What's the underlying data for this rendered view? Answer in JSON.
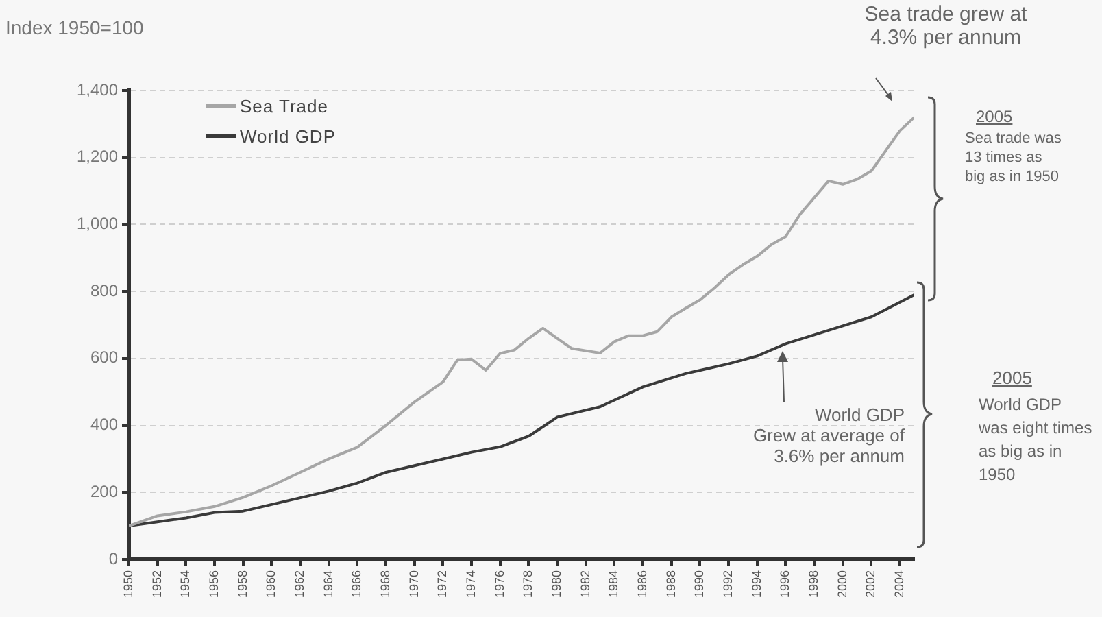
{
  "chart_data": {
    "type": "line",
    "ylabel": "Index 1950=100",
    "xlim": [
      1950,
      2005
    ],
    "xticks": [
      1950,
      1952,
      1954,
      1956,
      1958,
      1960,
      1962,
      1964,
      1966,
      1968,
      1970,
      1972,
      1974,
      1976,
      1978,
      1980,
      1982,
      1984,
      1986,
      1988,
      1990,
      1992,
      1994,
      1996,
      1998,
      2000,
      2002,
      2004
    ],
    "ylim": [
      0,
      1400
    ],
    "yticks": [
      0,
      200,
      400,
      600,
      800,
      {
        "value": 1000,
        "label": "1,000"
      },
      {
        "value": 1200,
        "label": "1,200"
      },
      {
        "value": 1400,
        "label": "1,400"
      }
    ],
    "grid": "y",
    "legend": "top left",
    "line_style": "solid",
    "marker": "none",
    "series": [
      {
        "name": "Sea Trade",
        "color": "#a6a6a6",
        "x": [
          1950,
          1952,
          1954,
          1956,
          1958,
          1960,
          1962,
          1964,
          1966,
          1968,
          1970,
          1972,
          1973,
          1974,
          1975,
          1976,
          1977,
          1978,
          1979,
          1980,
          1981,
          1982,
          1983,
          1984,
          1985,
          1986,
          1987,
          1988,
          1989,
          1990,
          1991,
          1992,
          1993,
          1994,
          1995,
          1996,
          1997,
          1998,
          1999,
          2000,
          2001,
          2002,
          2003,
          2004,
          2005
        ],
        "values": [
          100,
          130,
          142,
          158,
          185,
          220,
          260,
          300,
          335,
          400,
          470,
          530,
          595,
          598,
          565,
          615,
          625,
          660,
          690,
          660,
          630,
          623,
          616,
          650,
          668,
          668,
          680,
          724,
          750,
          775,
          810,
          850,
          880,
          905,
          940,
          964,
          1030,
          1080,
          1130,
          1120,
          1135,
          1160,
          1220,
          1280,
          1320
        ]
      },
      {
        "name": "World GDP",
        "color": "#3a3a3a",
        "x": [
          1950,
          1952,
          1954,
          1956,
          1958,
          1960,
          1962,
          1964,
          1966,
          1968,
          1970,
          1972,
          1974,
          1976,
          1978,
          1979,
          1980,
          1983,
          1986,
          1989,
          1992,
          1994,
          1996,
          1999,
          2002,
          2005
        ],
        "values": [
          100,
          112,
          124,
          140,
          144,
          164,
          184,
          204,
          228,
          260,
          280,
          300,
          320,
          336,
          368,
          396,
          425,
          456,
          515,
          555,
          584,
          607,
          644,
          684,
          724,
          790
        ]
      }
    ],
    "annotations": [
      "Sea trade grew at\n4.3% per annum",
      "2005",
      "Sea trade was 13 times as big as in 1950",
      "World GDP\nGrew at average of\n3.6% per annum",
      "2005",
      "World GDP was eight times as big as in 1950"
    ]
  }
}
